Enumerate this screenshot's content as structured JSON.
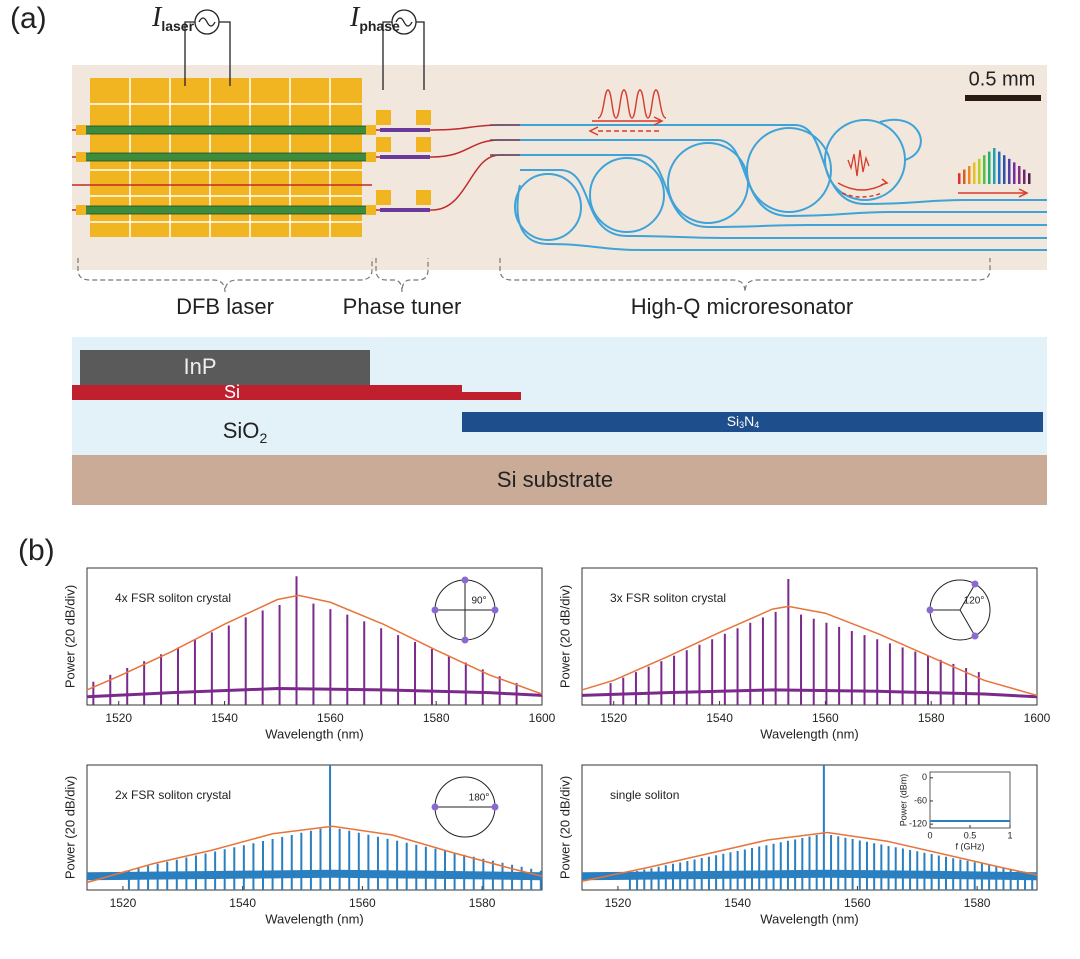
{
  "diagram": {
    "panel_label": "(a)",
    "current_laser": {
      "symbol": "I",
      "subscript": "laser"
    },
    "current_phase": {
      "symbol": "I",
      "subscript": "phase"
    },
    "scale_bar": "0.5 mm",
    "sections": [
      "DFB laser",
      "Phase tuner",
      "High-Q microresonator"
    ],
    "layers": {
      "inp": "InP",
      "si": "Si",
      "sio2": {
        "base": "SiO",
        "sub": "2"
      },
      "si3n4": [
        "Si",
        "3",
        "N",
        "4"
      ],
      "substrate": "Si substrate"
    }
  },
  "panel_b_label": "(b)",
  "chart_data": [
    {
      "type": "comb",
      "title": "4x FSR soliton crystal",
      "xlabel": "Wavelength (nm)",
      "ylabel": "Power (20 dB/div)",
      "xlim": [
        1514,
        1600
      ],
      "ylim": [
        0,
        5
      ],
      "xticks": [
        1520,
        1540,
        1560,
        1580,
        1600
      ],
      "color": "#7b2a8c",
      "angle_label": "90°",
      "comb": {
        "x": [
          1515.2,
          1518.4,
          1521.6,
          1524.8,
          1528.0,
          1531.2,
          1534.4,
          1537.6,
          1540.8,
          1544.0,
          1547.2,
          1550.4,
          1553.6,
          1556.8,
          1560.0,
          1563.2,
          1566.4,
          1569.6,
          1572.8,
          1576.0,
          1579.2,
          1582.4,
          1585.6,
          1588.8,
          1592.0,
          1595.2
        ],
        "values": [
          0.85,
          1.1,
          1.35,
          1.6,
          1.85,
          2.1,
          2.4,
          2.65,
          2.9,
          3.2,
          3.45,
          3.65,
          4.7,
          3.7,
          3.5,
          3.3,
          3.05,
          2.8,
          2.55,
          2.3,
          2.05,
          1.8,
          1.55,
          1.3,
          1.05,
          0.8
        ]
      },
      "envelope": {
        "color": "#e8743b",
        "x": [
          1514,
          1520,
          1530,
          1540,
          1550,
          1554,
          1560,
          1570,
          1580,
          1590,
          1600
        ],
        "values": [
          0.55,
          1.05,
          1.95,
          2.95,
          3.85,
          4.0,
          3.75,
          2.95,
          2.0,
          1.1,
          0.4
        ]
      },
      "floor": {
        "x": [
          1514,
          1530,
          1550,
          1570,
          1590,
          1600
        ],
        "values": [
          0.3,
          0.45,
          0.6,
          0.55,
          0.45,
          0.35
        ]
      }
    },
    {
      "type": "comb",
      "title": "3x FSR soliton crystal",
      "xlabel": "Wavelength (nm)",
      "ylabel": "Power (20 dB/div)",
      "xlim": [
        1514,
        1600
      ],
      "ylim": [
        0,
        5
      ],
      "xticks": [
        1520,
        1540,
        1560,
        1580,
        1600
      ],
      "color": "#7b2a8c",
      "angle_label": "120°",
      "comb": {
        "x": [
          1519.4,
          1521.8,
          1524.2,
          1526.6,
          1529.0,
          1531.4,
          1533.8,
          1536.2,
          1538.6,
          1541.0,
          1543.4,
          1545.8,
          1548.2,
          1550.6,
          1553.0,
          1555.4,
          1557.8,
          1560.2,
          1562.6,
          1565.0,
          1567.4,
          1569.8,
          1572.2,
          1574.6,
          1577.0,
          1579.4,
          1581.8,
          1584.2,
          1586.6,
          1589.0
        ],
        "values": [
          0.8,
          1.0,
          1.2,
          1.4,
          1.6,
          1.8,
          2.0,
          2.2,
          2.4,
          2.6,
          2.8,
          3.0,
          3.2,
          3.4,
          4.6,
          3.3,
          3.15,
          3.0,
          2.85,
          2.7,
          2.55,
          2.4,
          2.25,
          2.1,
          1.95,
          1.8,
          1.65,
          1.5,
          1.35,
          1.2
        ]
      },
      "envelope": {
        "color": "#e8743b",
        "x": [
          1514,
          1520,
          1530,
          1540,
          1550,
          1553,
          1560,
          1570,
          1580,
          1590,
          1600
        ],
        "values": [
          0.55,
          0.9,
          1.75,
          2.65,
          3.5,
          3.6,
          3.35,
          2.6,
          1.75,
          0.9,
          0.35
        ]
      },
      "floor": {
        "x": [
          1514,
          1530,
          1550,
          1570,
          1590,
          1600
        ],
        "values": [
          0.35,
          0.45,
          0.55,
          0.5,
          0.4,
          0.3
        ]
      }
    },
    {
      "type": "comb",
      "title": "2x FSR soliton crystal",
      "xlabel": "Wavelength (nm)",
      "ylabel": "Power (20 dB/div)",
      "xlim": [
        1514,
        1590
      ],
      "ylim": [
        0,
        5
      ],
      "xticks": [
        1520,
        1540,
        1560,
        1580
      ],
      "color": "#2a7fc1",
      "angle_label": "180°",
      "comb": {
        "x": [
          1521.0,
          1522.6,
          1524.2,
          1525.8,
          1527.4,
          1529.0,
          1530.6,
          1532.2,
          1533.8,
          1535.4,
          1537.0,
          1538.6,
          1540.2,
          1541.8,
          1543.4,
          1545.0,
          1546.6,
          1548.2,
          1549.8,
          1551.4,
          1553.0,
          1554.6,
          1556.2,
          1557.8,
          1559.4,
          1561.0,
          1562.6,
          1564.2,
          1565.8,
          1567.4,
          1569.0,
          1570.6,
          1572.2,
          1573.8,
          1575.4,
          1577.0,
          1578.6,
          1580.2,
          1581.8,
          1583.4,
          1585.0,
          1586.6,
          1588.2,
          1589.8
        ],
        "values": [
          0.8,
          0.88,
          0.96,
          1.05,
          1.13,
          1.21,
          1.3,
          1.38,
          1.46,
          1.54,
          1.63,
          1.71,
          1.79,
          1.87,
          1.96,
          2.04,
          2.12,
          2.2,
          2.29,
          2.37,
          2.45,
          5.0,
          2.45,
          2.37,
          2.29,
          2.21,
          2.13,
          2.05,
          1.97,
          1.89,
          1.81,
          1.73,
          1.65,
          1.57,
          1.49,
          1.41,
          1.33,
          1.25,
          1.17,
          1.09,
          1.01,
          0.93,
          0.85,
          0.77
        ]
      },
      "envelope": {
        "color": "#e8743b",
        "x": [
          1514,
          1525,
          1535,
          1545,
          1555,
          1565,
          1575,
          1585,
          1590
        ],
        "values": [
          0.3,
          1.05,
          1.6,
          2.25,
          2.55,
          2.2,
          1.5,
          0.85,
          0.55
        ]
      },
      "floor": {
        "x": [
          1514,
          1535,
          1555,
          1575,
          1590
        ],
        "values": [
          0.55,
          0.6,
          0.65,
          0.6,
          0.55
        ]
      }
    },
    {
      "type": "comb",
      "title": "single soliton",
      "xlabel": "Wavelength (nm)",
      "ylabel": "Power (20 dB/div)",
      "xlim": [
        1514,
        1590
      ],
      "ylim": [
        0,
        5
      ],
      "xticks": [
        1520,
        1540,
        1560,
        1580
      ],
      "color": "#2a7fc1",
      "comb": {
        "x": [
          1522.0,
          1523.2,
          1524.4,
          1525.6,
          1526.8,
          1528.0,
          1529.2,
          1530.4,
          1531.6,
          1532.8,
          1534.0,
          1535.2,
          1536.4,
          1537.6,
          1538.8,
          1540.0,
          1541.2,
          1542.4,
          1543.6,
          1544.8,
          1546.0,
          1547.2,
          1548.4,
          1549.6,
          1550.8,
          1552.0,
          1553.2,
          1554.4,
          1555.6,
          1556.8,
          1558.0,
          1559.2,
          1560.4,
          1561.6,
          1562.8,
          1564.0,
          1565.2,
          1566.4,
          1567.6,
          1568.8,
          1570.0,
          1571.2,
          1572.4,
          1573.6,
          1574.8,
          1576.0,
          1577.2,
          1578.4,
          1579.6,
          1580.8,
          1582.0,
          1583.2,
          1584.4,
          1585.6,
          1586.8,
          1588.0,
          1589.2
        ],
        "values": [
          0.7,
          0.76,
          0.82,
          0.87,
          0.93,
          0.99,
          1.05,
          1.1,
          1.16,
          1.22,
          1.28,
          1.33,
          1.39,
          1.45,
          1.51,
          1.56,
          1.62,
          1.68,
          1.74,
          1.79,
          1.85,
          1.91,
          1.97,
          2.02,
          2.08,
          2.14,
          2.2,
          5.0,
          2.2,
          2.15,
          2.09,
          2.04,
          1.98,
          1.93,
          1.87,
          1.82,
          1.76,
          1.71,
          1.66,
          1.6,
          1.55,
          1.49,
          1.44,
          1.38,
          1.33,
          1.27,
          1.22,
          1.17,
          1.11,
          1.06,
          1.0,
          0.95,
          0.89,
          0.84,
          0.78,
          0.73,
          0.67
        ]
      },
      "envelope": {
        "color": "#e8743b",
        "x": [
          1514,
          1525,
          1535,
          1545,
          1555,
          1565,
          1575,
          1585,
          1590
        ],
        "values": [
          0.35,
          0.9,
          1.45,
          2.0,
          2.3,
          1.95,
          1.4,
          0.85,
          0.6
        ]
      },
      "floor": {
        "x": [
          1514,
          1535,
          1555,
          1575,
          1590
        ],
        "values": [
          0.55,
          0.6,
          0.65,
          0.6,
          0.55
        ]
      },
      "inset": {
        "type": "line",
        "xlabel": "f (GHz)",
        "ylabel": "Power (dBm)",
        "xlim": [
          0,
          1
        ],
        "ylim": [
          -130,
          15
        ],
        "xticks": [
          0,
          0.5,
          1
        ],
        "yticks": [
          0,
          -60,
          -120
        ],
        "x": [
          0,
          1
        ],
        "values": [
          -112,
          -112
        ]
      }
    }
  ]
}
